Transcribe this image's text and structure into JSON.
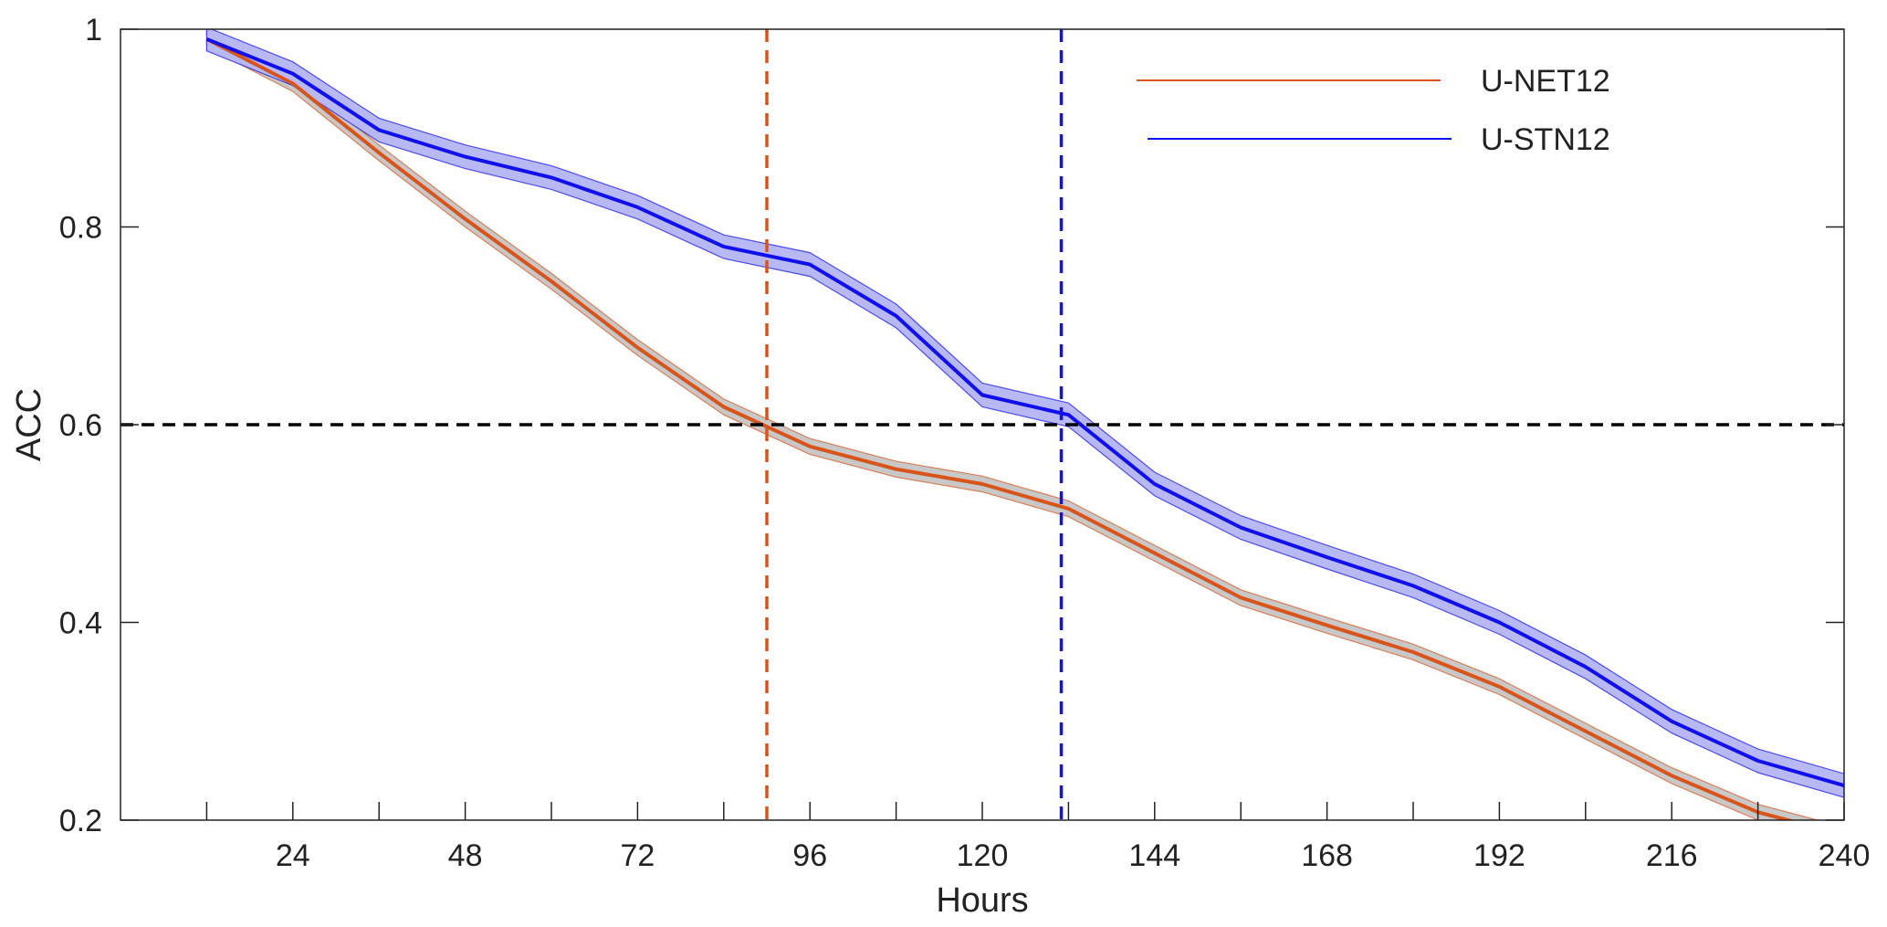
{
  "chart_data": {
    "type": "line",
    "xlabel": "Hours",
    "ylabel": "ACC",
    "xlim": [
      0,
      240
    ],
    "ylim": [
      0.2,
      1
    ],
    "x_ticks": [
      24,
      48,
      72,
      96,
      120,
      144,
      168,
      192,
      216,
      240
    ],
    "x_minor_ticks": [
      12,
      36,
      60,
      84,
      108,
      132,
      156,
      180,
      204,
      228
    ],
    "y_ticks": [
      0.2,
      0.4,
      0.6,
      0.8,
      1
    ],
    "y_tick_labels": [
      "0.2",
      "0.4",
      "0.6",
      "0.8",
      "1"
    ],
    "grid": false,
    "legend_position": "top-right",
    "x": [
      12,
      24,
      36,
      48,
      60,
      72,
      84,
      96,
      108,
      120,
      132,
      144,
      156,
      168,
      180,
      192,
      204,
      216,
      228,
      240
    ],
    "series": [
      {
        "name": "U-NET12",
        "color": "#d9541a",
        "band_color": "#c8c8c8",
        "values": [
          0.99,
          0.945,
          0.875,
          0.808,
          0.745,
          0.678,
          0.618,
          0.578,
          0.555,
          0.54,
          0.515,
          0.47,
          0.425,
          0.397,
          0.37,
          0.335,
          0.29,
          0.245,
          0.208,
          0.185
        ],
        "band": 0.008
      },
      {
        "name": "U-STN12",
        "color": "#1010ee",
        "band_color": "#b8b8f4",
        "values": [
          0.99,
          0.955,
          0.898,
          0.871,
          0.85,
          0.82,
          0.78,
          0.762,
          0.71,
          0.63,
          0.61,
          0.54,
          0.496,
          0.466,
          0.437,
          0.4,
          0.355,
          0.3,
          0.26,
          0.235
        ],
        "band": 0.012
      }
    ],
    "reference_lines": [
      {
        "orientation": "horizontal",
        "value": 0.6,
        "color": "#000000",
        "style": "dashed"
      },
      {
        "orientation": "vertical",
        "value": 90,
        "color": "#d9541a",
        "style": "dashed"
      },
      {
        "orientation": "vertical",
        "value": 131,
        "color": "#1010ee",
        "style": "dashed"
      }
    ]
  }
}
